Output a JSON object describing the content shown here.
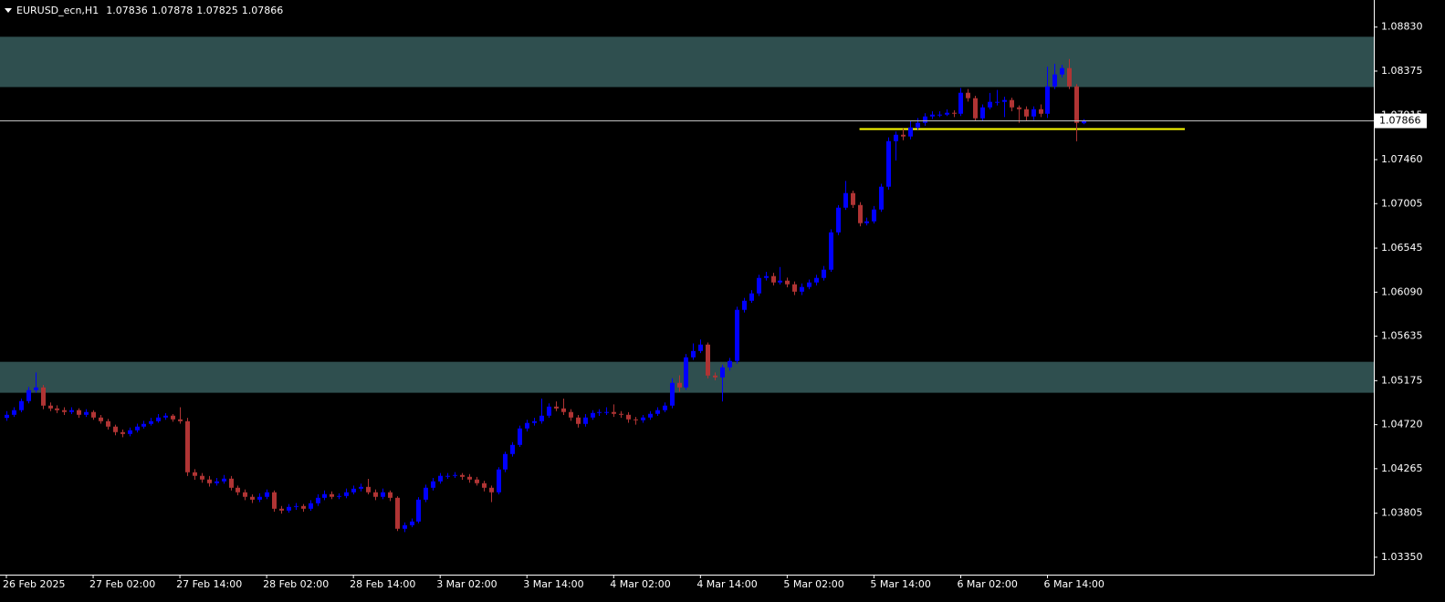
{
  "chart_data": {
    "type": "candlestick",
    "symbol": "EURUSD_ecn,H1",
    "categories": [
      "26 Feb 2025",
      null,
      null,
      null,
      null,
      null,
      null,
      null,
      null,
      null,
      null,
      null,
      "27 Feb 02:00",
      null,
      null,
      null,
      null,
      null,
      null,
      null,
      null,
      null,
      null,
      null,
      "27 Feb 14:00",
      null,
      null,
      null,
      null,
      null,
      null,
      null,
      null,
      null,
      null,
      null,
      "28 Feb 02:00",
      null,
      null,
      null,
      null,
      null,
      null,
      null,
      null,
      null,
      null,
      null,
      "28 Feb 14:00",
      null,
      null,
      null,
      null,
      null,
      null,
      null,
      null,
      null,
      null,
      null,
      "3 Mar 02:00",
      null,
      null,
      null,
      null,
      null,
      null,
      null,
      null,
      null,
      null,
      null,
      "3 Mar 14:00",
      null,
      null,
      null,
      null,
      null,
      null,
      null,
      null,
      null,
      null,
      null,
      "4 Mar 02:00",
      null,
      null,
      null,
      null,
      null,
      null,
      null,
      null,
      null,
      null,
      null,
      "4 Mar 14:00",
      null,
      null,
      null,
      null,
      null,
      null,
      null,
      null,
      null,
      null,
      null,
      "5 Mar 02:00",
      null,
      null,
      null,
      null,
      null,
      null,
      null,
      null,
      null,
      null,
      null,
      "5 Mar 14:00",
      null,
      null,
      null,
      null,
      null,
      null,
      null,
      null,
      null,
      null,
      null,
      "6 Mar 02:00",
      null,
      null,
      null,
      null,
      null,
      null,
      null,
      null,
      null,
      null,
      null,
      "6 Mar 14:00",
      null,
      null,
      null,
      null,
      null
    ],
    "open": [
      1.0479,
      1.04822,
      1.0487,
      1.04964,
      1.05077,
      1.05105,
      1.04917,
      1.04888,
      1.0487,
      1.04851,
      1.0487,
      1.04822,
      1.04851,
      1.04794,
      1.04756,
      1.047,
      1.04643,
      1.04624,
      1.04662,
      1.047,
      1.04728,
      1.04756,
      1.04794,
      1.04813,
      1.04775,
      1.04756,
      1.04228,
      1.04191,
      1.04153,
      1.04115,
      1.04134,
      1.04162,
      1.04068,
      1.04021,
      1.03974,
      1.03945,
      1.03974,
      1.04021,
      1.03851,
      1.03832,
      1.0387,
      1.03879,
      1.03851,
      1.03908,
      1.03964,
      1.04002,
      1.03974,
      1.03983,
      1.04021,
      1.04058,
      1.04077,
      1.04021,
      1.03974,
      1.04021,
      1.03964,
      1.03644,
      1.03681,
      1.03719,
      1.03945,
      1.04068,
      1.04134,
      1.04191,
      1.04191,
      1.042,
      1.04181,
      1.04153,
      1.04115,
      1.04068,
      1.04021,
      1.04257,
      1.04417,
      1.04511,
      1.04681,
      1.04738,
      1.04756,
      1.04813,
      1.04907,
      1.04888,
      1.04851,
      1.04794,
      1.04728,
      1.04794,
      1.04841,
      1.04851,
      1.04851,
      1.04832,
      1.04822,
      1.04775,
      1.04766,
      1.04794,
      1.04832,
      1.0487,
      1.04917,
      1.05152,
      1.05105,
      1.05416,
      1.05482,
      1.05548,
      1.05228,
      1.05209,
      1.05313,
      1.05379,
      1.05907,
      1.06001,
      1.06077,
      1.06237,
      1.06256,
      1.0619,
      1.06209,
      1.06171,
      1.06095,
      1.06143,
      1.0619,
      1.06237,
      1.06322,
      1.06708,
      1.06963,
      1.07114,
      1.06991,
      1.06803,
      1.06822,
      1.06944,
      1.0718,
      1.07651,
      1.07717,
      1.07699,
      1.07793,
      1.0784,
      1.07906,
      1.07925,
      1.07925,
      1.07944,
      1.07934,
      1.08151,
      1.08095,
      1.07887,
      1.08,
      1.08057,
      1.08057,
      1.08076,
      1.08,
      1.07981,
      1.07906,
      1.07981,
      1.07934,
      1.08217,
      1.0834,
      1.08406,
      1.08217,
      1.07836
    ],
    "high": [
      1.0486,
      1.049,
      1.0499,
      1.0511,
      1.0526,
      1.0513,
      1.0495,
      1.0492,
      1.049,
      1.049,
      1.0489,
      1.0488,
      1.0487,
      1.0482,
      1.0478,
      1.0472,
      1.0467,
      1.0469,
      1.0473,
      1.0476,
      1.0479,
      1.0483,
      1.0484,
      1.0483,
      1.049,
      1.0479,
      1.0426,
      1.0422,
      1.0419,
      1.0417,
      1.042,
      1.0419,
      1.0409,
      1.0405,
      1.04,
      1.0401,
      1.0405,
      1.0404,
      1.0388,
      1.039,
      1.0391,
      1.039,
      1.0394,
      1.04,
      1.0404,
      1.0403,
      1.0401,
      1.0406,
      1.0409,
      1.0411,
      1.0416,
      1.0405,
      1.0406,
      1.0404,
      1.0398,
      1.0371,
      1.0375,
      1.0397,
      1.041,
      1.0417,
      1.0422,
      1.0422,
      1.0423,
      1.0422,
      1.0421,
      1.0418,
      1.0414,
      1.0409,
      1.0428,
      1.0444,
      1.0454,
      1.0471,
      1.0477,
      1.0479,
      1.0499,
      1.0494,
      1.0496,
      1.0499,
      1.0488,
      1.0482,
      1.0483,
      1.0487,
      1.0488,
      1.049,
      1.0493,
      1.0486,
      1.0485,
      1.048,
      1.0482,
      1.0486,
      1.049,
      1.0495,
      1.052,
      1.0523,
      1.0545,
      1.0556,
      1.056,
      1.0557,
      1.0526,
      1.0534,
      1.0541,
      1.0594,
      1.0603,
      1.0611,
      1.0627,
      1.063,
      1.0629,
      1.0635,
      1.0624,
      1.062,
      1.0618,
      1.0622,
      1.0627,
      1.0636,
      1.0674,
      1.0699,
      1.0724,
      1.0714,
      1.0702,
      1.0686,
      1.0698,
      1.0721,
      1.0769,
      1.0775,
      1.0778,
      1.0786,
      1.0789,
      1.0794,
      1.0796,
      1.0796,
      1.0798,
      1.0797,
      1.082,
      1.0819,
      1.0812,
      1.0803,
      1.0815,
      1.0818,
      1.0811,
      1.081,
      1.0802,
      1.0801,
      1.0801,
      1.0803,
      1.0842,
      1.0845,
      1.0844,
      1.085,
      1.0824,
      1.07878
    ],
    "low": [
      1.0476,
      1.048,
      1.0485,
      1.0494,
      1.0505,
      1.0488,
      1.0486,
      1.0484,
      1.0482,
      1.0483,
      1.0479,
      1.048,
      1.0477,
      1.0473,
      1.0467,
      1.0461,
      1.0459,
      1.046,
      1.0464,
      1.0468,
      1.0471,
      1.0474,
      1.0477,
      1.0475,
      1.0473,
      1.0419,
      1.0415,
      1.0412,
      1.0408,
      1.0409,
      1.0411,
      1.0404,
      1.0399,
      1.0394,
      1.0391,
      1.0392,
      1.0395,
      1.0382,
      1.038,
      1.0381,
      1.0384,
      1.0382,
      1.0383,
      1.0388,
      1.0394,
      1.0395,
      1.0395,
      1.0396,
      1.04,
      1.0403,
      1.04,
      1.0394,
      1.0395,
      1.0393,
      1.0362,
      1.0361,
      1.0366,
      1.037,
      1.0392,
      1.0404,
      1.0411,
      1.0416,
      1.0417,
      1.0415,
      1.0412,
      1.0409,
      1.0403,
      1.0392,
      1.04,
      1.0423,
      1.0439,
      1.0449,
      1.0465,
      1.0471,
      1.0473,
      1.0479,
      1.0486,
      1.0482,
      1.0476,
      1.0469,
      1.047,
      1.0477,
      1.0481,
      1.0482,
      1.048,
      1.0479,
      1.0474,
      1.0472,
      1.0474,
      1.0477,
      1.0481,
      1.0485,
      1.0489,
      1.0506,
      1.0508,
      1.0539,
      1.0546,
      1.052,
      1.0518,
      1.0496,
      1.0528,
      1.0535,
      1.0588,
      1.0598,
      1.0605,
      1.0621,
      1.0616,
      1.0617,
      1.0614,
      1.0606,
      1.0606,
      1.0612,
      1.0616,
      1.0621,
      1.063,
      1.0668,
      1.0694,
      1.0696,
      1.0677,
      1.0678,
      1.068,
      1.0692,
      1.0715,
      1.0745,
      1.0766,
      1.0767,
      1.0777,
      1.0781,
      1.0788,
      1.079,
      1.0791,
      1.079,
      1.0791,
      1.0806,
      1.0786,
      1.0786,
      1.0798,
      1.0802,
      1.079,
      1.0796,
      1.0784,
      1.0786,
      1.0787,
      1.079,
      1.0789,
      1.0819,
      1.0831,
      1.0819,
      1.0765,
      1.07825
    ],
    "close": [
      1.04822,
      1.0487,
      1.04964,
      1.05077,
      1.05105,
      1.04917,
      1.04888,
      1.0487,
      1.04851,
      1.0487,
      1.04822,
      1.04851,
      1.04794,
      1.04756,
      1.047,
      1.04643,
      1.04624,
      1.04662,
      1.047,
      1.04728,
      1.04756,
      1.04794,
      1.04813,
      1.04775,
      1.04756,
      1.04228,
      1.04191,
      1.04153,
      1.04115,
      1.04134,
      1.04162,
      1.04068,
      1.04021,
      1.03974,
      1.03945,
      1.03974,
      1.04021,
      1.03851,
      1.03832,
      1.0387,
      1.03879,
      1.03851,
      1.03908,
      1.03964,
      1.04002,
      1.03974,
      1.03983,
      1.04021,
      1.04058,
      1.04077,
      1.04021,
      1.03974,
      1.04021,
      1.03964,
      1.03644,
      1.03681,
      1.03719,
      1.03945,
      1.04068,
      1.04134,
      1.04191,
      1.04191,
      1.042,
      1.04181,
      1.04153,
      1.04115,
      1.04068,
      1.04021,
      1.04257,
      1.04417,
      1.04511,
      1.04681,
      1.04738,
      1.04756,
      1.04813,
      1.04907,
      1.04888,
      1.04851,
      1.04794,
      1.04728,
      1.04794,
      1.04841,
      1.04851,
      1.04851,
      1.04832,
      1.04822,
      1.04775,
      1.04766,
      1.04794,
      1.04832,
      1.0487,
      1.04917,
      1.05152,
      1.05105,
      1.05416,
      1.05482,
      1.05548,
      1.05228,
      1.05209,
      1.05313,
      1.05379,
      1.05907,
      1.06001,
      1.06077,
      1.06237,
      1.06256,
      1.0619,
      1.06209,
      1.06171,
      1.06095,
      1.06143,
      1.0619,
      1.06237,
      1.06322,
      1.06708,
      1.06963,
      1.07114,
      1.06991,
      1.06803,
      1.06822,
      1.06944,
      1.0718,
      1.07651,
      1.07717,
      1.07699,
      1.07793,
      1.0784,
      1.07906,
      1.07925,
      1.07925,
      1.07944,
      1.07934,
      1.08151,
      1.08095,
      1.07887,
      1.08,
      1.08057,
      1.08057,
      1.08076,
      1.08,
      1.07981,
      1.07906,
      1.07981,
      1.07934,
      1.08217,
      1.0834,
      1.08406,
      1.08217,
      1.0784,
      1.07866
    ],
    "up_color": "#0000ff",
    "down_color": "#b03434",
    "zones": [
      {
        "from": 1.0821,
        "to": 1.0873
      },
      {
        "from": 1.0505,
        "to": 1.0537
      }
    ],
    "zone_color": "#2f4f4f",
    "level": {
      "price": 1.0778,
      "color": "#ffff00"
    },
    "price_line_color": "#c0c0c0",
    "ylim": [
      1.0317,
      1.0911
    ],
    "yticks": [
      {
        "value": 1.0883,
        "label": "1.08830"
      },
      1.08375,
      1.07915,
      {
        "value": 1.0746,
        "label": "1.07460"
      },
      1.07005,
      1.06545,
      {
        "value": 1.0609,
        "label": "1.06090"
      },
      1.05635,
      1.05175,
      {
        "value": 1.0472,
        "label": "1.04720"
      },
      1.04265,
      1.03805,
      {
        "value": 1.0335,
        "label": "1.03350"
      }
    ]
  }
}
